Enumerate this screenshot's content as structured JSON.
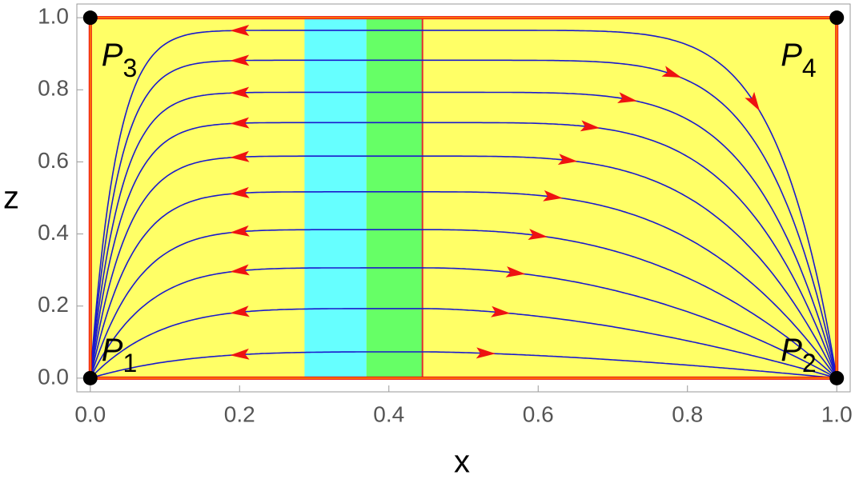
{
  "chart_data": {
    "type": "phase-portrait",
    "xlabel": "x",
    "ylabel": "z",
    "xlim": [
      -0.018,
      1.018
    ],
    "ylim": [
      -0.038,
      1.038
    ],
    "xticks": [
      {
        "value": 0,
        "label": "0.0"
      },
      {
        "value": 0.2,
        "label": "0.2"
      },
      {
        "value": 0.4,
        "label": "0.4"
      },
      {
        "value": 0.6,
        "label": "0.6"
      },
      {
        "value": 0.8,
        "label": "0.8"
      },
      {
        "value": 1,
        "label": "1.0"
      }
    ],
    "yticks": [
      {
        "value": 0,
        "label": "0.0"
      },
      {
        "value": 0.2,
        "label": "0.2"
      },
      {
        "value": 0.4,
        "label": "0.4"
      },
      {
        "value": 0.6,
        "label": "0.6"
      },
      {
        "value": 0.8,
        "label": "0.8"
      },
      {
        "value": 1,
        "label": "1.0"
      }
    ],
    "background": "#ffff66",
    "regions": [
      {
        "x": [
          0.287,
          0.37
        ],
        "color": "#66ffff"
      },
      {
        "x": [
          0.37,
          0.445
        ],
        "color": "#66ff66"
      }
    ],
    "separatrix": {
      "x": 0.445,
      "color": "#e03030"
    },
    "boundary_color": "#ee1111",
    "trajectory_color": "#1a1acc",
    "arrow_color": "#ee1111",
    "trajectories": [
      {
        "z_max": 0.073,
        "arrow_x": [
          0.2,
          0.53
        ]
      },
      {
        "z_max": 0.193,
        "arrow_x": [
          0.2,
          0.55
        ]
      },
      {
        "z_max": 0.306,
        "arrow_x": [
          0.2,
          0.57
        ]
      },
      {
        "z_max": 0.412,
        "arrow_x": [
          0.2,
          0.6
        ]
      },
      {
        "z_max": 0.517,
        "arrow_x": [
          0.2,
          0.62
        ]
      },
      {
        "z_max": 0.616,
        "arrow_x": [
          0.2,
          0.64
        ]
      },
      {
        "z_max": 0.709,
        "arrow_x": [
          0.2,
          0.67
        ]
      },
      {
        "z_max": 0.793,
        "arrow_x": [
          0.2,
          0.72
        ]
      },
      {
        "z_max": 0.882,
        "arrow_x": [
          0.2,
          0.78
        ]
      },
      {
        "z_max": 0.965,
        "arrow_x": [
          0.2,
          0.89
        ]
      }
    ],
    "points": [
      {
        "x": 0,
        "z": 0,
        "label": "P",
        "sub": "1"
      },
      {
        "x": 1,
        "z": 0,
        "label": "P",
        "sub": "2"
      },
      {
        "x": 0,
        "z": 1,
        "label": "P",
        "sub": "3"
      },
      {
        "x": 1,
        "z": 1,
        "label": "P",
        "sub": "4"
      }
    ]
  }
}
